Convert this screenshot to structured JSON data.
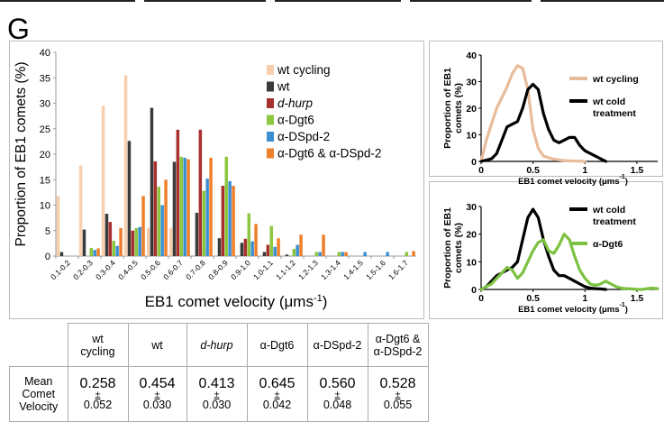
{
  "panel_label": "G",
  "colors": {
    "wt_cycling": "#f7cfae",
    "wt": "#3a3a3a",
    "d_hurp": "#a8302e",
    "dgt6": "#8dc63f",
    "dspd2": "#3b8fd0",
    "dgt6_dspd2": "#ee7f2d",
    "curve_cycling": "#e8bc9a",
    "curve_cold": "#000000",
    "curve_dgt6": "#7cc242"
  },
  "chart_data": [
    {
      "type": "bar",
      "xlabel": "EB1 comet velocity (μms",
      "xlabel_sup": "-1",
      "xlabel_tail": ")",
      "ylabel": "Proportion of EB1 comets (%)",
      "ylim": [
        0,
        40
      ],
      "yticks": [
        "0",
        "5",
        "10",
        "15",
        "20",
        "25",
        "30",
        "35",
        "40"
      ],
      "categories": [
        "0.1-0.2",
        "0.2-0.3",
        "0.3-0.4",
        "0.4-0.5",
        "0.5-0.6",
        "0.6-0.7",
        "0.7-0.8",
        "0.8-0.9",
        "0.9-1.0",
        "1.0-1.1",
        "1.1-1.2",
        "1.2-1.3",
        "1.3-1.4",
        "1.4-1.5",
        "1.5-1.6",
        "1.6-1.7"
      ],
      "legend_position": "top-right",
      "series": [
        {
          "name": "wt cycling",
          "color_key": "wt_cycling",
          "italic": false,
          "values": [
            11.8,
            17.8,
            29.5,
            35.5,
            5.5,
            5.5,
            0,
            0,
            0,
            0,
            0,
            0,
            0,
            0,
            0,
            0
          ]
        },
        {
          "name": "wt",
          "color_key": "wt",
          "italic": false,
          "values": [
            0.8,
            5.2,
            8.3,
            22.6,
            29.1,
            18.5,
            8.5,
            3.5,
            2.6,
            0.8,
            0.3,
            0,
            0,
            0,
            0,
            0
          ]
        },
        {
          "name": "d-hurp",
          "color_key": "d_hurp",
          "italic": true,
          "values": [
            0,
            0,
            6.7,
            5.0,
            18.6,
            24.8,
            24.8,
            13.8,
            3.4,
            2.2,
            0,
            0,
            0,
            0,
            0,
            0
          ]
        },
        {
          "name": "α-Dgt6",
          "color_key": "dgt6",
          "italic": false,
          "values": [
            0,
            1.6,
            3.0,
            5.5,
            13.6,
            19.5,
            12.8,
            19.5,
            8.4,
            5.9,
            1.4,
            0.8,
            0.8,
            0,
            0,
            0.8
          ]
        },
        {
          "name": "α-DSpd-2",
          "color_key": "dspd2",
          "italic": false,
          "values": [
            0,
            1.2,
            2.0,
            5.7,
            10.0,
            19.3,
            15.2,
            14.7,
            2.9,
            1.8,
            2.2,
            0.8,
            0.8,
            0.8,
            0.8,
            0
          ]
        },
        {
          "name": "α-Dgt6 & α-DSpd-2",
          "color_key": "dgt6_dspd2",
          "italic": false,
          "values": [
            0,
            1.5,
            5.5,
            11.8,
            15.0,
            19.0,
            19.3,
            13.8,
            6.3,
            3.5,
            4.2,
            4.2,
            0.8,
            0,
            0,
            1.0
          ]
        }
      ]
    },
    {
      "type": "line",
      "xlabel": "EB1 comet velocity (μms",
      "xlabel_sup": "-1",
      "xlabel_tail": ")",
      "ylabel_lines": [
        "Proportion of EB1",
        "comets (%)"
      ],
      "xlim": [
        0,
        1.7
      ],
      "ylim": [
        0,
        40
      ],
      "xticks": [
        {
          "v": 0,
          "t": "0"
        },
        {
          "v": 0.5,
          "t": "0.5"
        },
        {
          "v": 1,
          "t": "1"
        },
        {
          "v": 1.5,
          "t": "1.5"
        }
      ],
      "yticks": [
        {
          "v": 0,
          "t": "0"
        },
        {
          "v": 10,
          "t": "10"
        },
        {
          "v": 20,
          "t": "20"
        },
        {
          "v": 30,
          "t": "30"
        },
        {
          "v": 40,
          "t": "40"
        }
      ],
      "legend_position": "right",
      "series": [
        {
          "name": "wt cycling",
          "color_key": "curve_cycling",
          "x": [
            0,
            0.05,
            0.1,
            0.15,
            0.2,
            0.25,
            0.3,
            0.35,
            0.4,
            0.45,
            0.5,
            0.55,
            0.6,
            0.7,
            0.8,
            1.0
          ],
          "y": [
            0,
            8,
            14,
            20,
            24,
            28,
            33,
            36,
            35,
            27,
            12,
            5,
            2,
            0.8,
            0.3,
            0
          ]
        },
        {
          "name": "wt cold treatment",
          "color_key": "curve_cold",
          "x": [
            0,
            0.05,
            0.1,
            0.15,
            0.2,
            0.25,
            0.3,
            0.35,
            0.4,
            0.45,
            0.5,
            0.55,
            0.6,
            0.65,
            0.7,
            0.75,
            0.8,
            0.85,
            0.9,
            0.95,
            1.0,
            1.05,
            1.1,
            1.15,
            1.2
          ],
          "y": [
            0,
            0.5,
            1,
            3,
            8,
            13,
            14,
            15,
            20,
            27,
            29,
            27,
            18,
            12,
            8,
            7,
            8,
            9,
            9,
            6,
            4,
            3,
            2,
            1,
            0
          ]
        }
      ],
      "legend": [
        {
          "lines": [
            "wt cycling"
          ],
          "color_key": "curve_cycling"
        },
        {
          "lines": [
            "wt cold",
            "treatment"
          ],
          "color_key": "curve_cold"
        }
      ]
    },
    {
      "type": "line",
      "xlabel": "EB1 comet velocity (μms",
      "xlabel_sup": "-1",
      "xlabel_tail": ")",
      "ylabel_lines": [
        "Proportion of EB1",
        "comets (%)"
      ],
      "xlim": [
        0,
        1.7
      ],
      "ylim": [
        0,
        30
      ],
      "xticks": [
        {
          "v": 0,
          "t": "0"
        },
        {
          "v": 0.5,
          "t": "0.5"
        },
        {
          "v": 1,
          "t": "1"
        },
        {
          "v": 1.5,
          "t": "1.5"
        }
      ],
      "yticks": [
        {
          "v": 0,
          "t": "0"
        },
        {
          "v": 10,
          "t": "10"
        },
        {
          "v": 20,
          "t": "20"
        },
        {
          "v": 30,
          "t": "30"
        }
      ],
      "legend_position": "top-right",
      "series": [
        {
          "name": "wt cold treatment",
          "color_key": "curve_cold",
          "x": [
            0,
            0.05,
            0.1,
            0.15,
            0.2,
            0.25,
            0.3,
            0.35,
            0.4,
            0.45,
            0.5,
            0.55,
            0.6,
            0.65,
            0.7,
            0.75,
            0.8,
            0.85,
            0.9,
            0.95,
            1.0,
            1.05,
            1.1,
            1.15,
            1.2
          ],
          "y": [
            0,
            1,
            3,
            5,
            6,
            7,
            8,
            10,
            18,
            26,
            29,
            26,
            18,
            12,
            7,
            5,
            5,
            4,
            3,
            2,
            1,
            0.5,
            0.3,
            0.2,
            0
          ]
        },
        {
          "name": "α-Dgt6",
          "color_key": "curve_dgt6",
          "x": [
            0,
            0.05,
            0.1,
            0.15,
            0.2,
            0.25,
            0.3,
            0.35,
            0.4,
            0.45,
            0.5,
            0.55,
            0.6,
            0.65,
            0.7,
            0.75,
            0.8,
            0.85,
            0.9,
            0.95,
            1.0,
            1.05,
            1.1,
            1.15,
            1.2,
            1.25,
            1.3,
            1.35,
            1.4,
            1.45,
            1.5,
            1.55,
            1.6,
            1.65,
            1.7
          ],
          "y": [
            0,
            1,
            2,
            4,
            6,
            8,
            7,
            4,
            6,
            10,
            14,
            17,
            18,
            14,
            13,
            16,
            20,
            18,
            12,
            7,
            4,
            2,
            1.5,
            2,
            3,
            2,
            1,
            0.5,
            0.3,
            0.2,
            0,
            0,
            0.3,
            0.5,
            0.3
          ]
        }
      ],
      "legend": [
        {
          "lines": [
            "wt cold",
            "treatment"
          ],
          "color_key": "curve_cold"
        },
        {
          "lines": [
            "α-Dgt6"
          ],
          "color_key": "curve_dgt6"
        }
      ]
    }
  ],
  "table": {
    "row_label": [
      "Mean",
      "Comet",
      "Velocity"
    ],
    "columns": [
      {
        "header": [
          "wt",
          "cycling"
        ],
        "italic": false,
        "mean": "0.258",
        "pm": "±",
        "err": "0.052"
      },
      {
        "header": [
          "wt"
        ],
        "italic": false,
        "mean": "0.454",
        "pm": "±",
        "err": "0.030"
      },
      {
        "header": [
          "d-hurp"
        ],
        "italic": true,
        "mean": "0.413",
        "pm": "±",
        "err": "0.030"
      },
      {
        "header": [
          "α-Dgt6"
        ],
        "italic": false,
        "mean": "0.645",
        "pm": "±",
        "err": "0.042"
      },
      {
        "header": [
          "α-DSpd-2"
        ],
        "italic": false,
        "mean": "0.560",
        "pm": "±",
        "err": "0.048"
      },
      {
        "header": [
          "α-Dgt6 &",
          "α-DSpd-2"
        ],
        "italic": false,
        "mean": "0.528",
        "pm": "±",
        "err": "0.055"
      }
    ]
  }
}
